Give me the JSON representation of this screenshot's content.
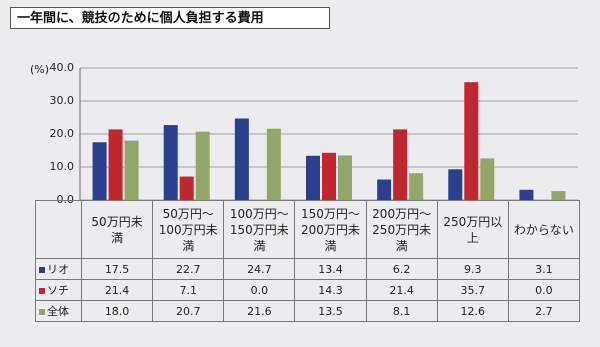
{
  "chart_data": {
    "type": "bar",
    "title": "一年間に、競技のために個人負担する費用",
    "y_label": "(%)",
    "categories": [
      "50万円未満",
      "50万円～100万円未満",
      "100万円～150万円未満",
      "150万円～200万円未満",
      "200万円～250万円未満",
      "250万円以上",
      "わからない"
    ],
    "series": [
      {
        "name": "リオ",
        "color": "#2b3f8f",
        "values": [
          17.5,
          22.7,
          24.7,
          13.4,
          6.2,
          9.3,
          3.1
        ],
        "value_labels": [
          "17.5",
          "22.7",
          "24.7",
          "13.4",
          "6.2",
          "9.3",
          "3.1"
        ]
      },
      {
        "name": "ソチ",
        "color": "#c0282f",
        "values": [
          21.4,
          7.1,
          0.0,
          14.3,
          21.4,
          35.7,
          0.0
        ],
        "value_labels": [
          "21.4",
          "7.1",
          "0.0",
          "14.3",
          "21.4",
          "35.7",
          "0.0"
        ]
      },
      {
        "name": "全体",
        "color": "#93a66a",
        "values": [
          18.0,
          20.7,
          21.6,
          13.5,
          8.1,
          12.6,
          2.7
        ],
        "value_labels": [
          "18.0",
          "20.7",
          "21.6",
          "13.5",
          "8.1",
          "12.6",
          "2.7"
        ]
      }
    ],
    "ylim": [
      0,
      40
    ],
    "yticks": [
      {
        "value": 0,
        "label": "0.0"
      },
      {
        "value": 10,
        "label": "10.0"
      },
      {
        "value": 20,
        "label": "20.0"
      },
      {
        "value": 30,
        "label": "30.0"
      },
      {
        "value": 40,
        "label": "40.0"
      }
    ],
    "grid": true
  }
}
